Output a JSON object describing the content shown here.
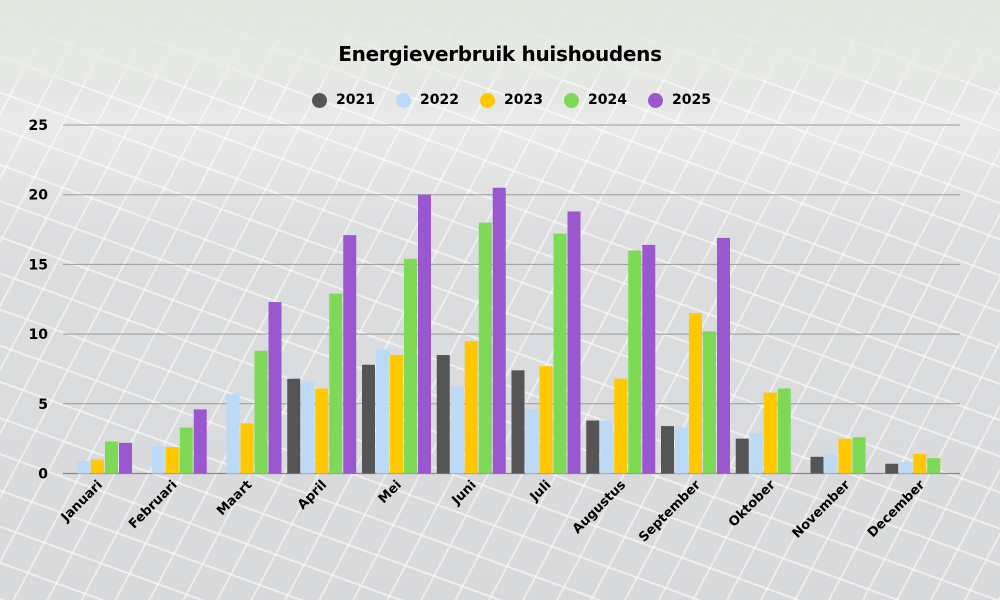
{
  "chart_data": {
    "type": "bar",
    "title": "Energieverbruik huishoudens",
    "xlabel": "",
    "ylabel": "",
    "ylim": [
      0,
      25
    ],
    "yticks": [
      "0",
      "5",
      "10",
      "15",
      "20",
      "25"
    ],
    "grid": true,
    "legend_position": "top",
    "categories": [
      "Januari",
      "Februari",
      "Maart",
      "April",
      "Mei",
      "Juni",
      "Juli",
      "Augustus",
      "September",
      "Oktober",
      "November",
      "December"
    ],
    "series": [
      {
        "name": "2021",
        "color": "#555555",
        "values": [
          null,
          null,
          null,
          6.8,
          7.8,
          8.5,
          7.4,
          3.8,
          3.4,
          2.5,
          1.2,
          0.7
        ]
      },
      {
        "name": "2022",
        "color": "#bbdaf6",
        "values": [
          0.9,
          2.0,
          5.7,
          6.6,
          8.9,
          6.2,
          4.6,
          3.8,
          3.3,
          2.9,
          1.4,
          0.8
        ]
      },
      {
        "name": "2023",
        "color": "#ffc800",
        "values": [
          1.0,
          1.9,
          3.6,
          6.1,
          8.5,
          9.5,
          7.7,
          6.8,
          11.5,
          5.8,
          2.5,
          1.4
        ]
      },
      {
        "name": "2024",
        "color": "#7ed957",
        "values": [
          2.3,
          3.3,
          8.8,
          12.9,
          15.4,
          18.0,
          17.2,
          16.0,
          10.2,
          6.1,
          2.6,
          1.1
        ]
      },
      {
        "name": "2025",
        "color": "#9b57d0",
        "values": [
          2.2,
          4.6,
          12.3,
          17.1,
          20.0,
          20.5,
          18.8,
          16.4,
          16.9,
          null,
          null,
          null
        ]
      }
    ]
  }
}
